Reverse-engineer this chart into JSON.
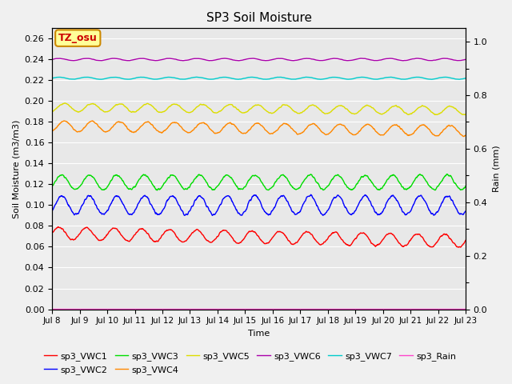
{
  "title": "SP3 Soil Moisture",
  "xlabel": "Time",
  "ylabel_left": "Soil Moisture (m3/m3)",
  "ylabel_right": "Rain (mm)",
  "annotation": "TZ_osu",
  "ylim_left": [
    0.0,
    0.27
  ],
  "ylim_right": [
    0.0,
    1.05
  ],
  "x_ticks_labels": [
    "Jul 8",
    "Jul 9",
    "Jul 10",
    "Jul 11",
    "Jul 12",
    "Jul 13",
    "Jul 14",
    "Jul 15",
    "Jul 16",
    "Jul 17",
    "Jul 18",
    "Jul 19",
    "Jul 20",
    "Jul 21",
    "Jul 22",
    "Jul 23"
  ],
  "yticks_left": [
    0.0,
    0.02,
    0.04,
    0.06,
    0.08,
    0.1,
    0.12,
    0.14,
    0.16,
    0.18,
    0.2,
    0.22,
    0.24,
    0.26
  ],
  "yticks_right": [
    0.0,
    0.2,
    0.4,
    0.6,
    0.8,
    1.0
  ],
  "series": {
    "sp3_VWC1": {
      "color": "#ff0000",
      "base": 0.073,
      "amp": 0.006,
      "period": 1.0,
      "phase": 0.0,
      "trend": -0.0005
    },
    "sp3_VWC2": {
      "color": "#0000ff",
      "base": 0.1,
      "amp": 0.009,
      "period": 1.0,
      "phase": 0.1,
      "trend": 0.0
    },
    "sp3_VWC3": {
      "color": "#00dd00",
      "base": 0.122,
      "amp": 0.007,
      "period": 1.0,
      "phase": 0.1,
      "trend": 0.0
    },
    "sp3_VWC4": {
      "color": "#ff8800",
      "base": 0.176,
      "amp": 0.005,
      "period": 1.0,
      "phase": 0.2,
      "trend": -0.0003
    },
    "sp3_VWC5": {
      "color": "#dddd00",
      "base": 0.194,
      "amp": 0.004,
      "period": 1.0,
      "phase": 0.2,
      "trend": -0.0002
    },
    "sp3_VWC6": {
      "color": "#aa00aa",
      "base": 0.24,
      "amp": 0.001,
      "period": 1.0,
      "phase": 0.0,
      "trend": 0.0
    },
    "sp3_VWC7": {
      "color": "#00cccc",
      "base": 0.222,
      "amp": 0.001,
      "period": 1.0,
      "phase": 0.0,
      "trend": 0.0
    },
    "sp3_Rain": {
      "color": "#ff44cc",
      "base": 0.0,
      "amp": 0.0,
      "period": 1.0,
      "phase": 0.0,
      "trend": 0.0
    }
  },
  "legend_order": [
    "sp3_VWC1",
    "sp3_VWC2",
    "sp3_VWC3",
    "sp3_VWC4",
    "sp3_VWC5",
    "sp3_VWC6",
    "sp3_VWC7",
    "sp3_Rain"
  ],
  "plot_bg_color": "#e8e8e8",
  "annotation_bg": "#ffff99",
  "annotation_border": "#cc8800"
}
